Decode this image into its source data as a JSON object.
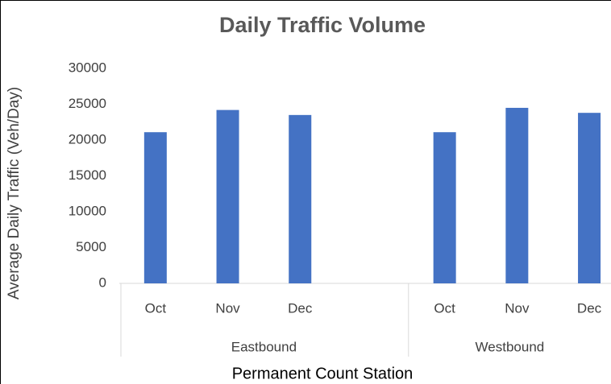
{
  "chart_data": {
    "type": "bar",
    "title": "Daily Traffic Volume",
    "x_label": "Permanent Count Station",
    "y_label": "Average Daily Traffic (Veh/Day)",
    "color": "#4472c4",
    "groups": [
      {
        "name": "Eastbound",
        "categories": [
          "Oct",
          "Nov",
          "Dec",
          null
        ],
        "values": [
          21100,
          24200,
          23500,
          null
        ]
      },
      {
        "name": "Westbound",
        "categories": [
          "Oct",
          "Nov",
          "Dec"
        ],
        "values": [
          21100,
          24500,
          23800
        ]
      }
    ],
    "ylim": [
      0,
      30000
    ],
    "yticks": [
      0,
      5000,
      10000,
      15000,
      20000,
      25000,
      30000
    ],
    "grid": false
  }
}
